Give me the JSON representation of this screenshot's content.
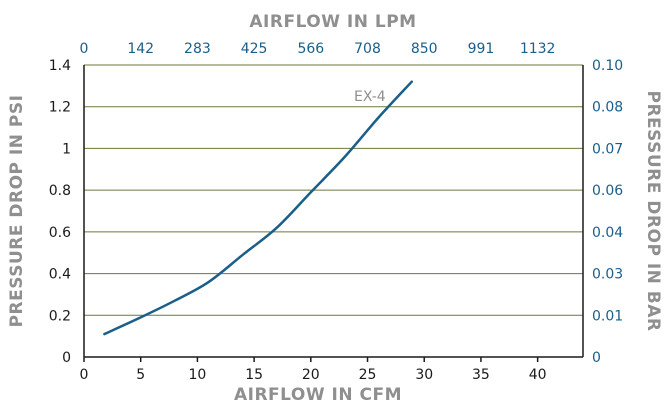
{
  "chart_data": {
    "type": "line",
    "top_xlabel": "AIRFLOW IN LPM",
    "xlabel": "AIRFLOW IN CFM",
    "ylabel": "PRESSURE DROP IN PSI",
    "ylabel_right": "PRESSURE DROP IN BAR",
    "xlim": [
      0,
      44
    ],
    "ylim": [
      0,
      1.4
    ],
    "x_ticks": [
      "0",
      "5",
      "10",
      "15",
      "20",
      "25",
      "30",
      "35",
      "40"
    ],
    "y_ticks": [
      "0",
      "0.2",
      "0.4",
      "0.6",
      "0.8",
      "1",
      "1.2",
      "1.4"
    ],
    "top_ticks": [
      "0",
      "142",
      "283",
      "425",
      "566",
      "708",
      "850",
      "991",
      "1132"
    ],
    "right_ticks": [
      "0",
      "0.01",
      "0.03",
      "0.04",
      "0.06",
      "0.07",
      "0.08",
      "0.10"
    ],
    "grid": "horizontal",
    "colors": {
      "line": "#1a5f8a",
      "grid": "#6b7a3a",
      "secondary_axis": "#1a5f8a"
    },
    "series": [
      {
        "name": "EX-4",
        "x": [
          1.8,
          5,
          8,
          11,
          14,
          17,
          20,
          23,
          26,
          28.9
        ],
        "y": [
          0.11,
          0.19,
          0.27,
          0.36,
          0.49,
          0.62,
          0.79,
          0.96,
          1.15,
          1.32
        ]
      }
    ]
  }
}
